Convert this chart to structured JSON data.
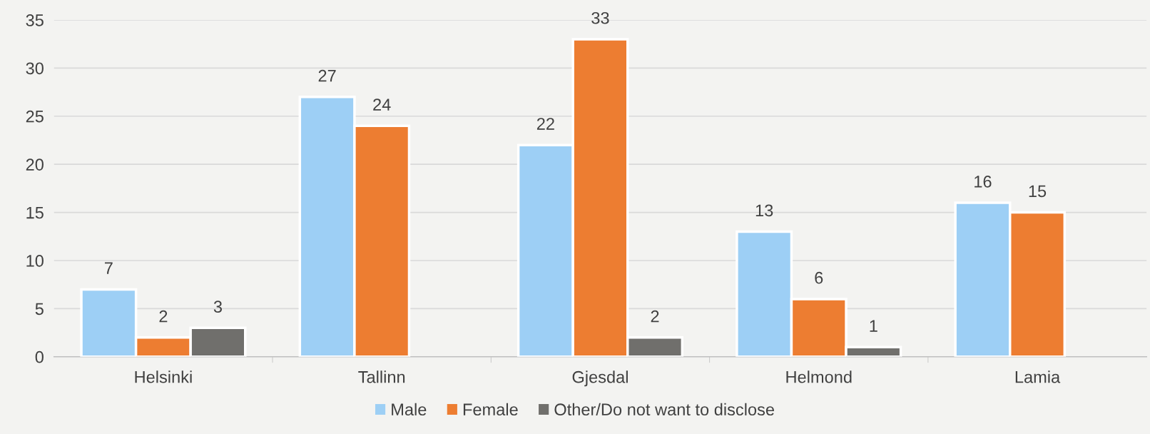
{
  "chart_data": {
    "type": "bar",
    "categories": [
      "Helsinki",
      "Tallinn",
      "Gjesdal",
      "Helmond",
      "Lamia"
    ],
    "series": [
      {
        "name": "Male",
        "color": "#9dcff5",
        "values": [
          7,
          27,
          22,
          13,
          16
        ]
      },
      {
        "name": "Female",
        "color": "#ed7d31",
        "values": [
          2,
          24,
          33,
          6,
          15
        ]
      },
      {
        "name": "Other/Do not want to disclose",
        "color": "#706f6c",
        "values": [
          3,
          null,
          2,
          1,
          null
        ]
      }
    ],
    "ylim": [
      0,
      35
    ],
    "yticks": [
      0,
      5,
      10,
      15,
      20,
      25,
      30,
      35
    ],
    "grid": "y",
    "legend": "bottom",
    "data_labels": true
  }
}
